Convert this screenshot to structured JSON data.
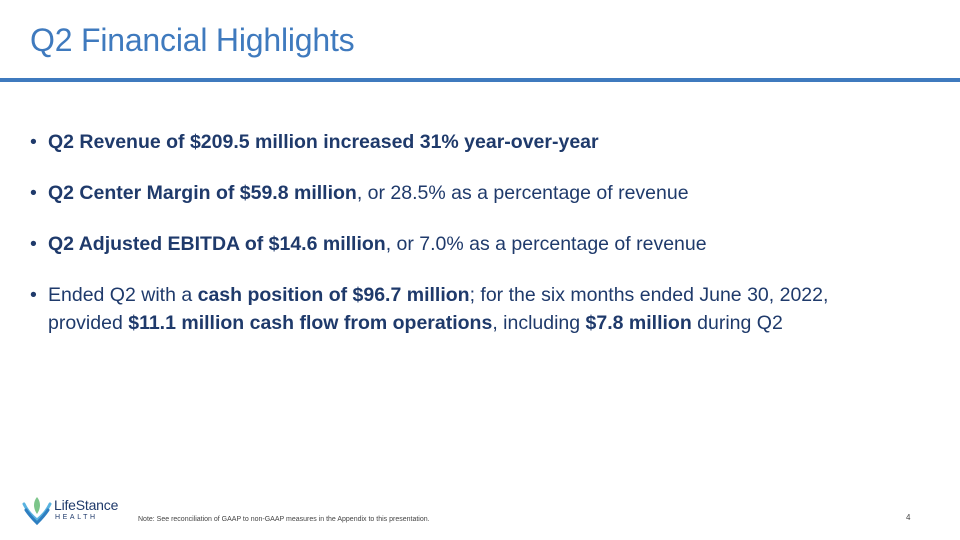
{
  "slide": {
    "title": "Q2 Financial Highlights",
    "page_number": "4",
    "footer_note": "Note:  See reconciliation of GAAP to non-GAAP measures in the Appendix to this presentation."
  },
  "bullets": [
    {
      "parts": [
        {
          "text": "Q2 Revenue of $209.5 million increased 31% year-over-year",
          "bold": true
        }
      ]
    },
    {
      "parts": [
        {
          "text": "Q2 Center Margin of $59.8 million",
          "bold": true
        },
        {
          "text": ", or 28.5% as a percentage of revenue",
          "bold": false
        }
      ]
    },
    {
      "parts": [
        {
          "text": "Q2 Adjusted EBITDA of $14.6 million",
          "bold": true
        },
        {
          "text": ", or 7.0% as a percentage of revenue",
          "bold": false
        }
      ]
    },
    {
      "parts": [
        {
          "text": "Ended Q2 with a ",
          "bold": false
        },
        {
          "text": "cash position of $96.7 million",
          "bold": true
        },
        {
          "text": "; for the six months ended June 30, 2022, provided ",
          "bold": false
        },
        {
          "text": "$11.1 million cash flow from operations",
          "bold": true
        },
        {
          "text": ", including ",
          "bold": false
        },
        {
          "text": "$7.8 million",
          "bold": true
        },
        {
          "text": " during Q2",
          "bold": false
        }
      ]
    }
  ],
  "logo": {
    "name": "LifeStance",
    "subtitle": "HEALTH",
    "colors": [
      "#5ab3e0",
      "#2e7fc1",
      "#7cc58a"
    ]
  },
  "colors": {
    "accent": "#3f7abe",
    "body_text": "#1f3a6b"
  }
}
